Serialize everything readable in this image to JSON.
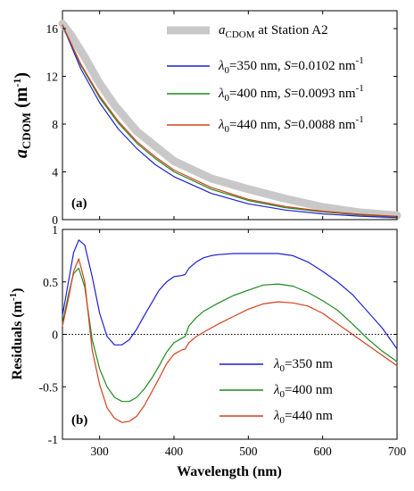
{
  "chart_data": [
    {
      "type": "line",
      "panel_label": "(a)",
      "xlim": [
        250,
        700
      ],
      "ylim": [
        0,
        17.5
      ],
      "xticks": [
        300,
        400,
        500,
        600,
        700
      ],
      "yticks": [
        0,
        4,
        8,
        12,
        16
      ],
      "show_xticklabels": false,
      "ylabel": {
        "main": "a",
        "sub": "CDOM",
        "unit": " (m",
        "sup": "-1",
        "close": ")"
      },
      "legend": {
        "placement": "top-right",
        "entries": [
          {
            "main": "a",
            "sub": "CDOM",
            "rest": " at Station A2"
          },
          {
            "lambda": "λ",
            "sub": "0",
            "rest": "=350 nm, ",
            "s": "S",
            "rest2": "=0.0102 nm",
            "sup": "-1"
          },
          {
            "lambda": "λ",
            "sub": "0",
            "rest": "=400 nm, ",
            "s": "S",
            "rest2": "=0.0093 nm",
            "sup": "-1"
          },
          {
            "lambda": "λ",
            "sub": "0",
            "rest": "=440 nm, ",
            "s": "S",
            "rest2": "=0.0088 nm",
            "sup": "-1"
          }
        ]
      },
      "series": [
        {
          "color": "#c8c8c8",
          "x": [
            250,
            260,
            270,
            280,
            290,
            300,
            320,
            350,
            400,
            450,
            500,
            550,
            600,
            650,
            700
          ],
          "y": [
            16.4,
            15.6,
            14.6,
            13.6,
            12.5,
            11.4,
            9.6,
            7.4,
            4.9,
            3.45,
            2.55,
            1.75,
            1.05,
            0.6,
            0.35
          ]
        },
        {
          "color": "#1f1fd1",
          "x": [
            250,
            275,
            300,
            325,
            350,
            375,
            400,
            450,
            500,
            550,
            600,
            650,
            700
          ],
          "y": [
            16.3,
            12.6,
            9.8,
            7.6,
            5.95,
            4.6,
            3.6,
            2.2,
            1.32,
            0.8,
            0.48,
            0.29,
            0.18
          ]
        },
        {
          "color": "#1e8a1e",
          "x": [
            250,
            275,
            300,
            325,
            350,
            375,
            400,
            450,
            500,
            550,
            600,
            650,
            700
          ],
          "y": [
            16.3,
            12.9,
            10.2,
            8.1,
            6.4,
            5.1,
            4.0,
            2.55,
            1.6,
            1.0,
            0.64,
            0.4,
            0.25
          ]
        },
        {
          "color": "#d2401f",
          "x": [
            250,
            275,
            300,
            325,
            350,
            375,
            400,
            450,
            500,
            550,
            600,
            650,
            700
          ],
          "y": [
            16.3,
            13.0,
            10.35,
            8.25,
            6.55,
            5.25,
            4.15,
            2.7,
            1.7,
            1.1,
            0.7,
            0.45,
            0.28
          ]
        }
      ]
    },
    {
      "type": "line",
      "panel_label": "(b)",
      "xlim": [
        250,
        700
      ],
      "ylim": [
        -1,
        1
      ],
      "xticks": [
        300,
        400,
        500,
        600,
        700
      ],
      "yticks": [
        -1,
        -0.5,
        0,
        0.5,
        1
      ],
      "xlabel": "Wavelength (nm)",
      "ylabel": {
        "main": "Residuals",
        "unit": " (m",
        "sup": "-1",
        "close": ")"
      },
      "zero_line": {
        "y": 0,
        "style": "dotted",
        "color": "#000000"
      },
      "legend": {
        "placement": "bottom-right",
        "entries": [
          {
            "lambda": "λ",
            "sub": "0",
            "rest": "=350 nm"
          },
          {
            "lambda": "λ",
            "sub": "0",
            "rest": "=400 nm"
          },
          {
            "lambda": "λ",
            "sub": "0",
            "rest": "=440 nm"
          }
        ]
      },
      "series": [
        {
          "color": "#1f1fd1",
          "x": [
            250,
            258,
            265,
            272,
            280,
            290,
            300,
            310,
            320,
            330,
            340,
            350,
            360,
            370,
            380,
            390,
            400,
            410,
            415,
            420,
            430,
            440,
            450,
            460,
            480,
            500,
            520,
            540,
            560,
            580,
            600,
            620,
            640,
            660,
            680,
            700
          ],
          "y": [
            0.18,
            0.5,
            0.78,
            0.9,
            0.85,
            0.55,
            0.2,
            -0.02,
            -0.1,
            -0.1,
            -0.05,
            0.05,
            0.18,
            0.3,
            0.42,
            0.5,
            0.55,
            0.56,
            0.57,
            0.63,
            0.69,
            0.73,
            0.75,
            0.76,
            0.77,
            0.77,
            0.77,
            0.77,
            0.75,
            0.69,
            0.6,
            0.5,
            0.38,
            0.22,
            0.06,
            -0.14
          ]
        },
        {
          "color": "#1e8a1e",
          "x": [
            250,
            258,
            265,
            272,
            280,
            290,
            300,
            310,
            320,
            330,
            340,
            350,
            360,
            370,
            380,
            390,
            400,
            410,
            415,
            420,
            430,
            440,
            450,
            460,
            480,
            500,
            520,
            540,
            560,
            580,
            600,
            620,
            640,
            660,
            680,
            700
          ],
          "y": [
            0.1,
            0.38,
            0.58,
            0.63,
            0.45,
            -0.05,
            -0.33,
            -0.5,
            -0.6,
            -0.64,
            -0.64,
            -0.6,
            -0.52,
            -0.42,
            -0.3,
            -0.17,
            -0.08,
            -0.04,
            -0.02,
            0.08,
            0.16,
            0.22,
            0.26,
            0.3,
            0.37,
            0.42,
            0.47,
            0.48,
            0.46,
            0.4,
            0.32,
            0.23,
            0.1,
            -0.04,
            -0.16,
            -0.26
          ]
        },
        {
          "color": "#d2401f",
          "x": [
            250,
            258,
            265,
            272,
            280,
            290,
            300,
            310,
            320,
            330,
            340,
            350,
            360,
            370,
            380,
            390,
            400,
            410,
            415,
            420,
            430,
            440,
            450,
            460,
            480,
            500,
            520,
            540,
            560,
            580,
            600,
            620,
            640,
            660,
            680,
            700
          ],
          "y": [
            0.08,
            0.34,
            0.6,
            0.72,
            0.5,
            -0.15,
            -0.48,
            -0.7,
            -0.8,
            -0.84,
            -0.83,
            -0.78,
            -0.68,
            -0.55,
            -0.42,
            -0.28,
            -0.19,
            -0.15,
            -0.14,
            -0.08,
            -0.02,
            0.02,
            0.06,
            0.1,
            0.17,
            0.24,
            0.29,
            0.31,
            0.3,
            0.27,
            0.2,
            0.1,
            0.0,
            -0.1,
            -0.2,
            -0.3
          ]
        }
      ]
    }
  ]
}
